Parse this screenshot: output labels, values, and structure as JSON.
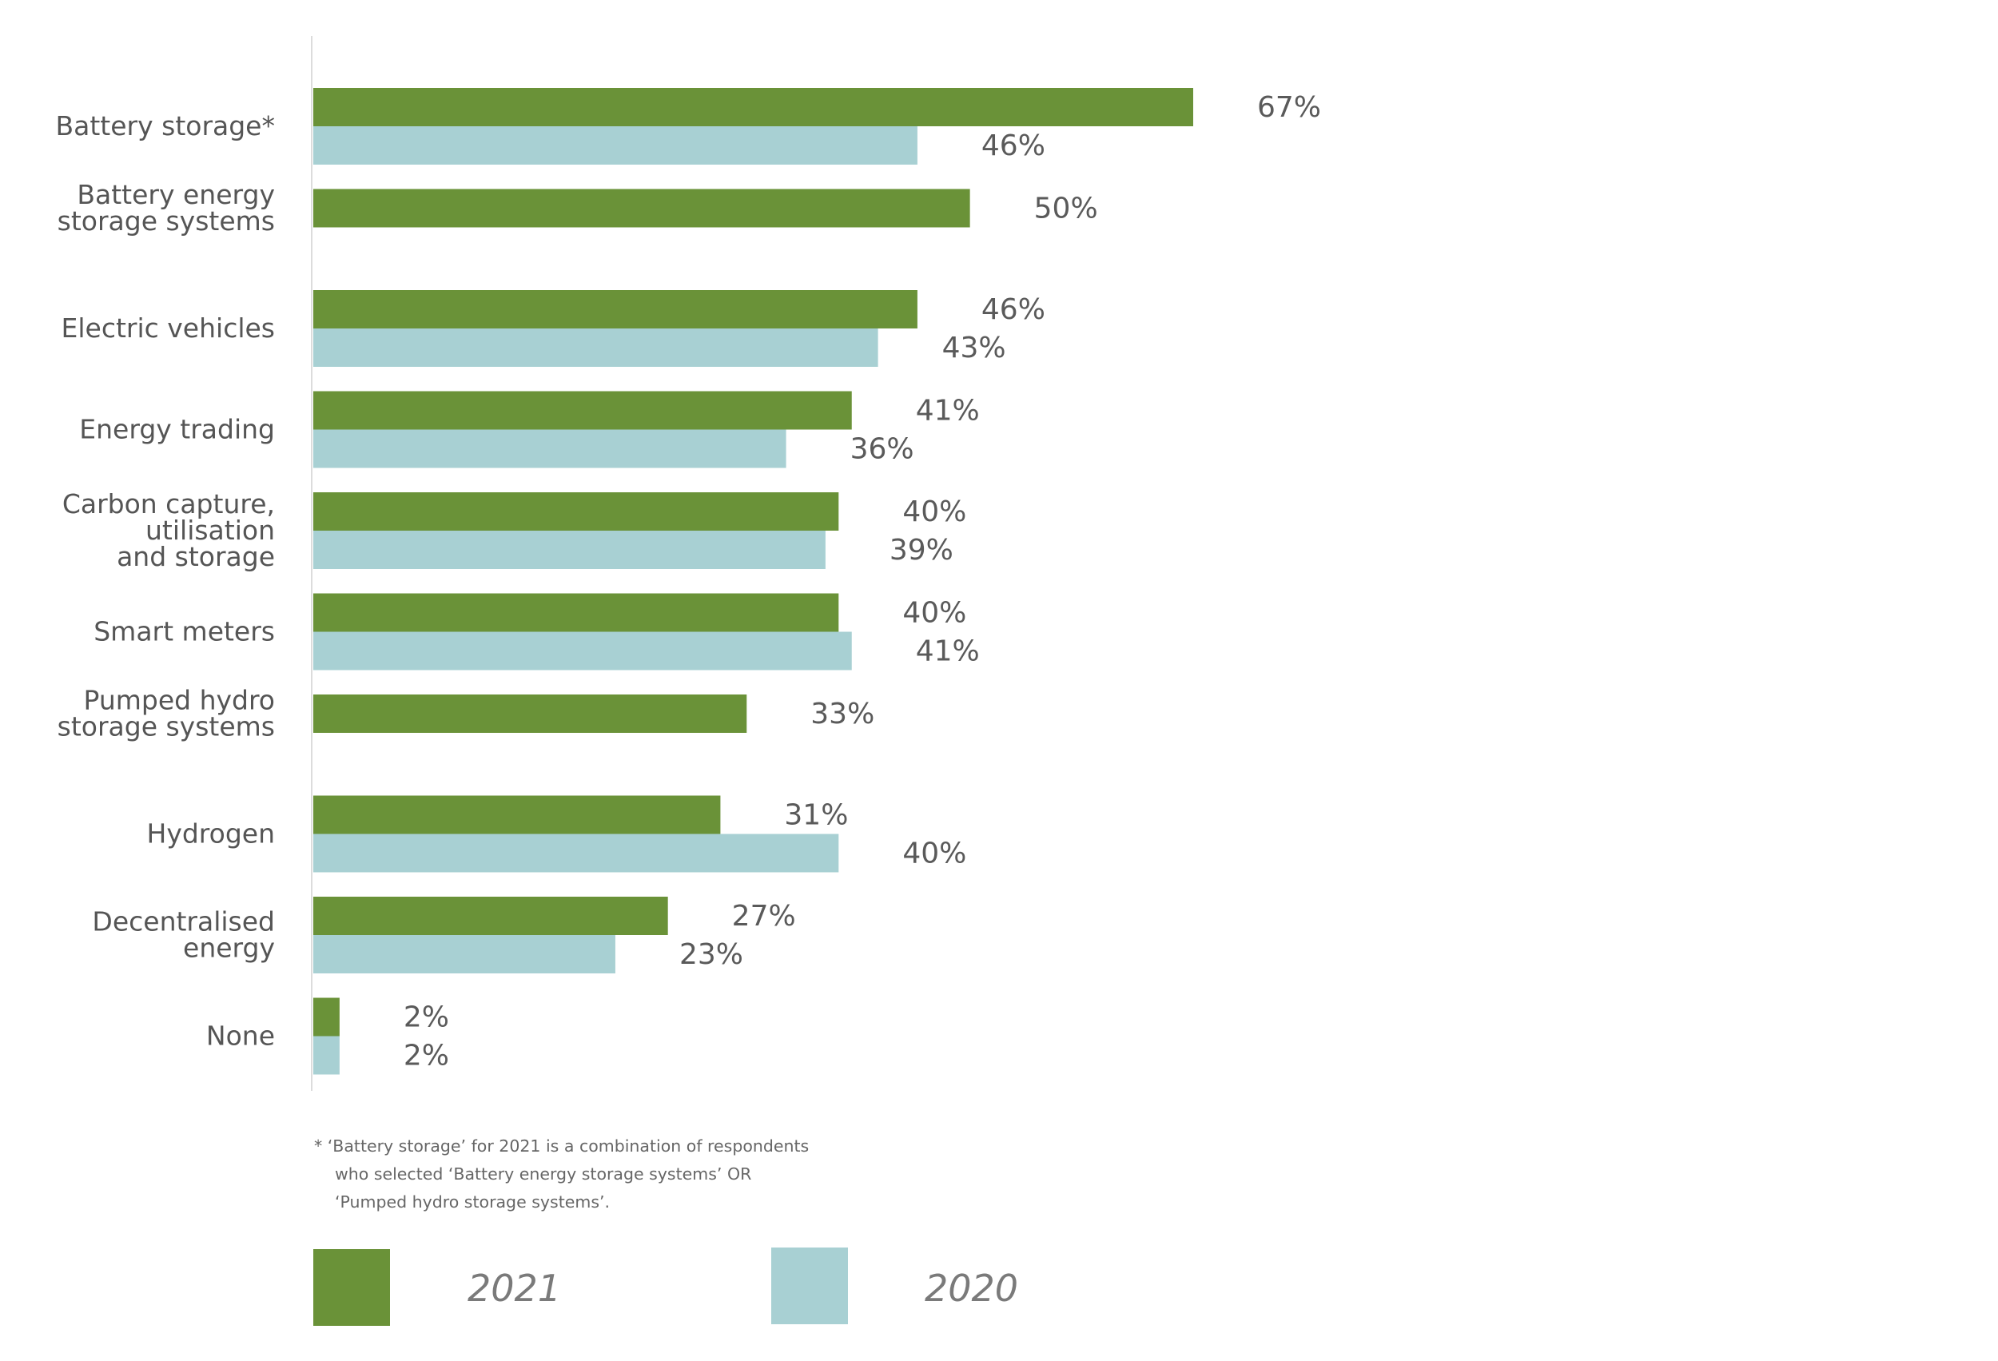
{
  "chart_data": {
    "type": "bar",
    "orientation": "horizontal",
    "categories": [
      [
        "Battery storage*"
      ],
      [
        "Battery energy",
        "storage systems"
      ],
      [
        "Electric vehicles"
      ],
      [
        "Energy trading"
      ],
      [
        "Carbon capture,",
        "utilisation",
        "and storage"
      ],
      [
        "Smart meters"
      ],
      [
        "Pumped hydro",
        "storage systems"
      ],
      [
        "Hydrogen"
      ],
      [
        "Decentralised",
        "energy"
      ],
      [
        "None"
      ]
    ],
    "series": [
      {
        "name": "2021",
        "color": "#6a9238",
        "values": [
          67,
          50,
          46,
          41,
          40,
          40,
          33,
          31,
          27,
          2
        ],
        "labels": [
          "67%",
          "50%",
          "46%",
          "41%",
          "40%",
          "40%",
          "33%",
          "31%",
          "27%",
          "2%"
        ]
      },
      {
        "name": "2020",
        "color": "#a8d0d3",
        "values": [
          46,
          null,
          43,
          36,
          39,
          41,
          null,
          40,
          23,
          2
        ],
        "labels": [
          "46%",
          null,
          "43%",
          "36%",
          "39%",
          "41%",
          null,
          "40%",
          "23%",
          "2%"
        ]
      }
    ],
    "xlim": [
      0,
      67
    ],
    "grid": false,
    "legend_position": "bottom-left",
    "footnote": [
      "*  ‘Battery storage’ for 2021 is a combination of respondents",
      "who selected ‘Battery energy storage systems’ OR",
      "‘Pumped hydro storage systems’."
    ]
  }
}
